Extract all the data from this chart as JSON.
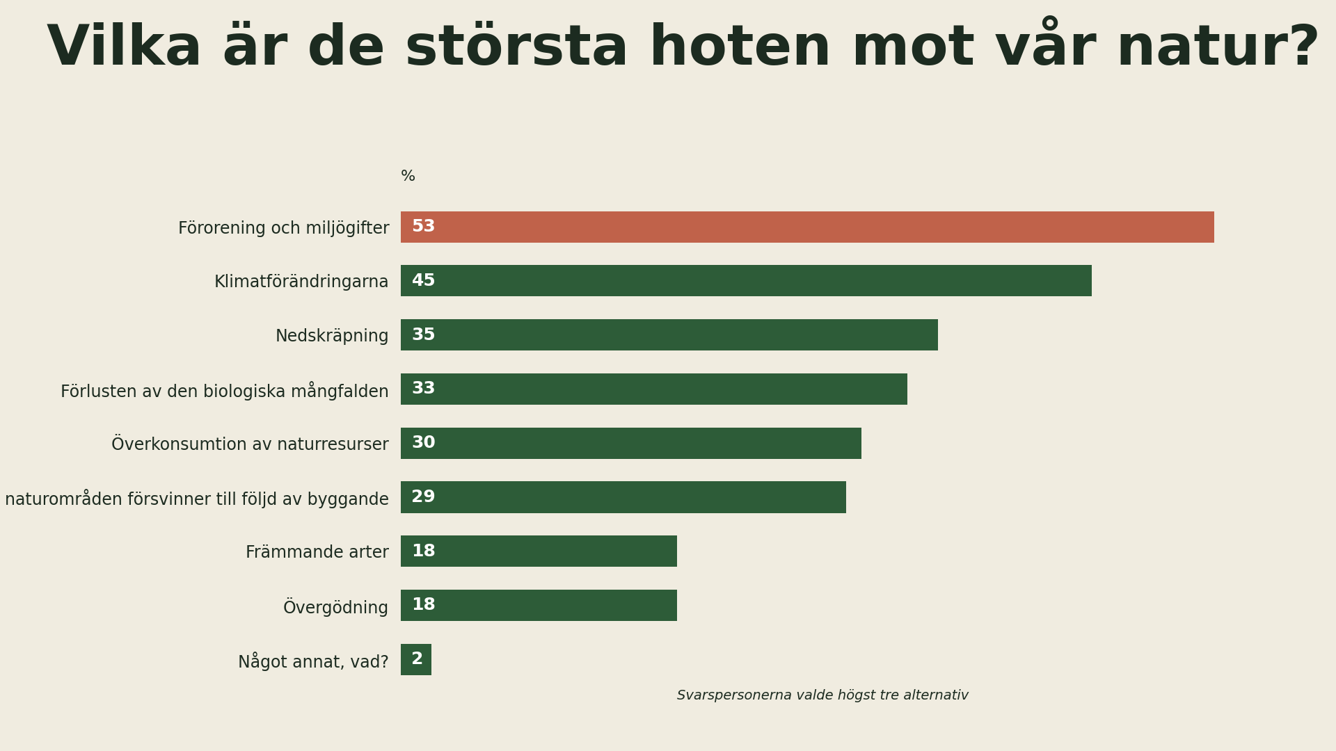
{
  "title": "Vilka är de största hoten mot vår natur?",
  "categories": [
    "Förorening och miljögifter",
    "Klimatförändringarna",
    "Nedskräpning",
    "Förlusten av den biologiska mångfalden",
    "Överkonsumtion av naturresurser",
    "Att naturområden försvinner till följd av byggande",
    "Främmande arter",
    "Övergödning",
    "Något annat, vad?"
  ],
  "values": [
    53,
    45,
    35,
    33,
    30,
    29,
    18,
    18,
    2
  ],
  "bar_colors": [
    "#c0624a",
    "#2d5c38",
    "#2d5c38",
    "#2d5c38",
    "#2d5c38",
    "#2d5c38",
    "#2d5c38",
    "#2d5c38",
    "#2d5c38"
  ],
  "background_color": "#f0ece0",
  "title_color": "#1c2b20",
  "label_color": "#1c2b20",
  "value_text_color": "#ffffff",
  "footnote": "Svarspersonerna valde högst tre alternativ",
  "percent_label": "%",
  "xlim": [
    0,
    57
  ],
  "bar_height": 0.58,
  "title_fontsize": 58,
  "label_fontsize": 17,
  "value_fontsize": 18,
  "footnote_fontsize": 14,
  "percent_fontsize": 16
}
